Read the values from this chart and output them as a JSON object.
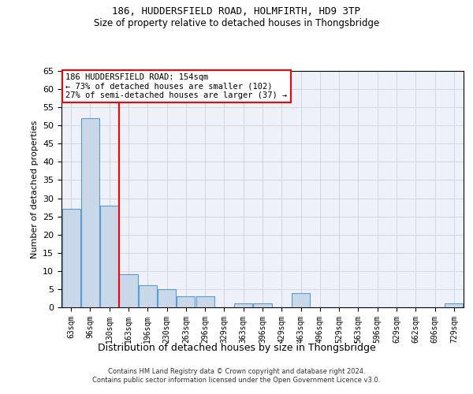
{
  "title": "186, HUDDERSFIELD ROAD, HOLMFIRTH, HD9 3TP",
  "subtitle": "Size of property relative to detached houses in Thongsbridge",
  "xlabel": "Distribution of detached houses by size in Thongsbridge",
  "ylabel": "Number of detached properties",
  "categories": [
    "63sqm",
    "96sqm",
    "130sqm",
    "163sqm",
    "196sqm",
    "230sqm",
    "263sqm",
    "296sqm",
    "329sqm",
    "363sqm",
    "396sqm",
    "429sqm",
    "463sqm",
    "496sqm",
    "529sqm",
    "563sqm",
    "596sqm",
    "629sqm",
    "662sqm",
    "696sqm",
    "729sqm"
  ],
  "values": [
    27,
    52,
    28,
    9,
    6,
    5,
    3,
    3,
    0,
    1,
    1,
    0,
    4,
    0,
    0,
    0,
    0,
    0,
    0,
    0,
    1
  ],
  "bar_color": "#c8d8e8",
  "bar_edge_color": "#5b9bd5",
  "grid_color": "#d0d8e8",
  "background_color": "#eef2f8",
  "property_line_x": 2.5,
  "annotation_text_line1": "186 HUDDERSFIELD ROAD: 154sqm",
  "annotation_text_line2": "← 73% of detached houses are smaller (102)",
  "annotation_text_line3": "27% of semi-detached houses are larger (37) →",
  "annotation_box_color": "white",
  "annotation_box_edgecolor": "red",
  "property_line_color": "red",
  "ylim": [
    0,
    65
  ],
  "yticks": [
    0,
    5,
    10,
    15,
    20,
    25,
    30,
    35,
    40,
    45,
    50,
    55,
    60,
    65
  ],
  "footer_line1": "Contains HM Land Registry data © Crown copyright and database right 2024.",
  "footer_line2": "Contains public sector information licensed under the Open Government Licence v3.0."
}
